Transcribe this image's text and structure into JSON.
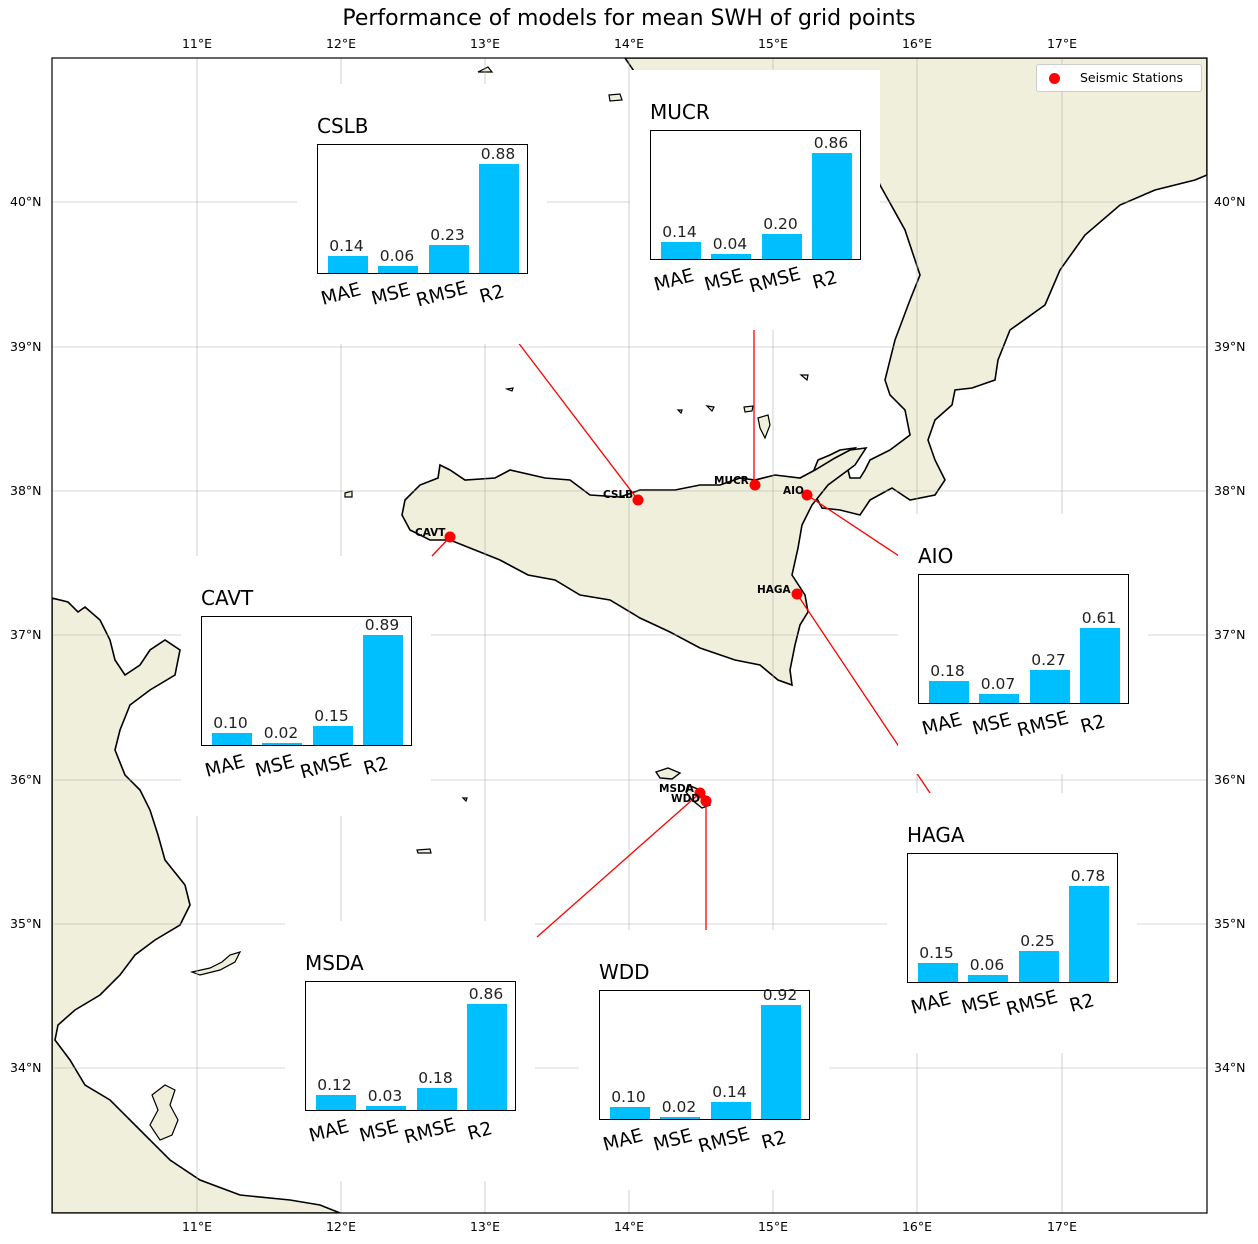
{
  "title": "Performance of models for mean SWH of grid points",
  "x_ticks": [
    "11°E",
    "12°E",
    "13°E",
    "14°E",
    "15°E",
    "16°E",
    "17°E"
  ],
  "y_ticks": [
    "40°N",
    "39°N",
    "38°N",
    "37°N",
    "36°N",
    "35°N",
    "34°N"
  ],
  "legend": {
    "label": "Seismic Stations",
    "color": "#ff0000"
  },
  "colors": {
    "land": "#efefdb",
    "bar": "#00bfff",
    "marker": "#ff0000",
    "line": "#ff0000"
  },
  "stations": [
    {
      "id": "CSLB",
      "lon": 14.06,
      "lat": 37.94
    },
    {
      "id": "MUCR",
      "lon": 14.87,
      "lat": 38.04
    },
    {
      "id": "AIO",
      "lon": 15.23,
      "lat": 37.97
    },
    {
      "id": "CAVT",
      "lon": 12.76,
      "lat": 37.68
    },
    {
      "id": "HAGA",
      "lon": 15.17,
      "lat": 37.29
    },
    {
      "id": "MSDA",
      "lon": 14.48,
      "lat": 35.9
    },
    {
      "id": "WDD",
      "lon": 14.53,
      "lat": 35.84
    }
  ],
  "chart_data": [
    {
      "type": "bar",
      "title": "CSLB",
      "categories": [
        "MAE",
        "MSE",
        "RMSE",
        "R2"
      ],
      "values": [
        0.14,
        0.06,
        0.23,
        0.88
      ],
      "labels": [
        "0.14",
        "0.06",
        "0.23",
        "0.88"
      ]
    },
    {
      "type": "bar",
      "title": "MUCR",
      "categories": [
        "MAE",
        "MSE",
        "RMSE",
        "R2"
      ],
      "values": [
        0.14,
        0.04,
        0.2,
        0.86
      ],
      "labels": [
        "0.14",
        "0.04",
        "0.20",
        "0.86"
      ]
    },
    {
      "type": "bar",
      "title": "AIO",
      "categories": [
        "MAE",
        "MSE",
        "RMSE",
        "R2"
      ],
      "values": [
        0.18,
        0.07,
        0.27,
        0.61
      ],
      "labels": [
        "0.18",
        "0.07",
        "0.27",
        "0.61"
      ]
    },
    {
      "type": "bar",
      "title": "CAVT",
      "categories": [
        "MAE",
        "MSE",
        "RMSE",
        "R2"
      ],
      "values": [
        0.1,
        0.02,
        0.15,
        0.89
      ],
      "labels": [
        "0.10",
        "0.02",
        "0.15",
        "0.89"
      ]
    },
    {
      "type": "bar",
      "title": "HAGA",
      "categories": [
        "MAE",
        "MSE",
        "RMSE",
        "R2"
      ],
      "values": [
        0.15,
        0.06,
        0.25,
        0.78
      ],
      "labels": [
        "0.15",
        "0.06",
        "0.25",
        "0.78"
      ]
    },
    {
      "type": "bar",
      "title": "MSDA",
      "categories": [
        "MAE",
        "MSE",
        "RMSE",
        "R2"
      ],
      "values": [
        0.12,
        0.03,
        0.18,
        0.86
      ],
      "labels": [
        "0.12",
        "0.03",
        "0.18",
        "0.86"
      ]
    },
    {
      "type": "bar",
      "title": "WDD",
      "categories": [
        "MAE",
        "MSE",
        "RMSE",
        "R2"
      ],
      "values": [
        0.1,
        0.02,
        0.14,
        0.92
      ],
      "labels": [
        "0.10",
        "0.02",
        "0.14",
        "0.92"
      ]
    }
  ]
}
